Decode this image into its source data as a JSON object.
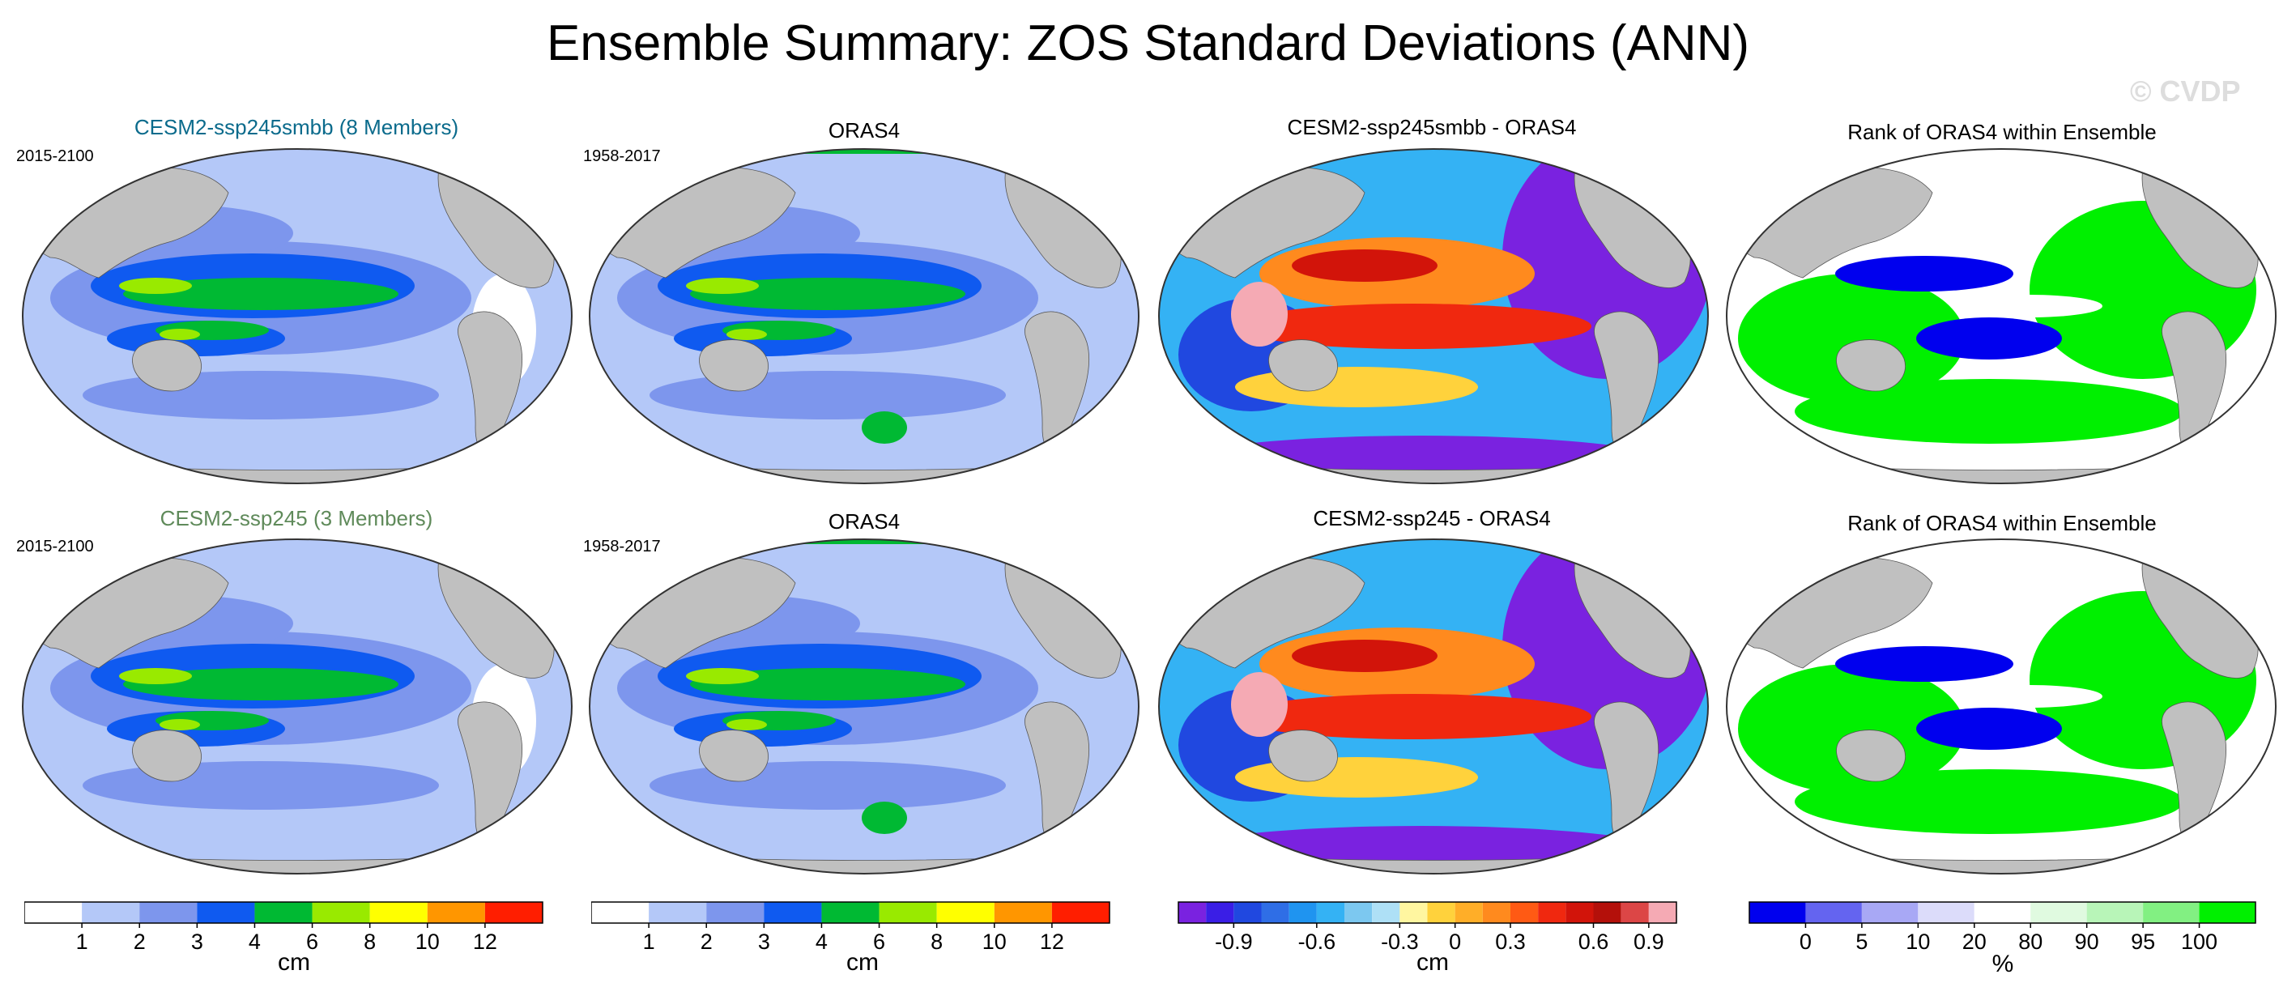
{
  "title": "Ensemble Summary: ZOS Standard Deviations (ANN)",
  "watermark": "© CVDP",
  "colors": {
    "ocean_light": "#b4c8f8",
    "ocean_mid": "#7d96ed",
    "ocean_blue": "#0f5af0",
    "ocean_green": "#00b933",
    "ocean_lime": "#99ea00",
    "land": "#c0c0c0",
    "text_model1": "#0b6b8c",
    "text_model2": "#5f8a5a"
  },
  "rows": [
    {
      "panels": [
        {
          "title": "CESM2-ssp245smbb (8 Members)",
          "period": "2015-2100",
          "kind": "std"
        },
        {
          "title": "ORAS4",
          "period": "1958-2017",
          "kind": "std"
        },
        {
          "title": "CESM2-ssp245smbb - ORAS4",
          "kind": "diff"
        },
        {
          "title": "Rank of ORAS4 within Ensemble",
          "kind": "rank"
        }
      ]
    },
    {
      "panels": [
        {
          "title": "CESM2-ssp245 (3 Members)",
          "period": "2015-2100",
          "kind": "std"
        },
        {
          "title": "ORAS4",
          "period": "1958-2017",
          "kind": "std"
        },
        {
          "title": "CESM2-ssp245 - ORAS4",
          "kind": "diff"
        },
        {
          "title": "Rank of ORAS4 within Ensemble",
          "kind": "rank"
        }
      ]
    }
  ],
  "chart_data": [
    {
      "type": "colorbar",
      "label": "cm",
      "levels": [
        "1",
        "2",
        "3",
        "4",
        "6",
        "8",
        "10",
        "12"
      ],
      "colors": [
        "#ffffff",
        "#b4c8f8",
        "#7d96ed",
        "#0f5af0",
        "#00b933",
        "#99ea00",
        "#ffff00",
        "#ff9600",
        "#ff1e00"
      ]
    },
    {
      "type": "colorbar",
      "label": "cm",
      "levels": [
        "1",
        "2",
        "3",
        "4",
        "6",
        "8",
        "10",
        "12"
      ],
      "colors": [
        "#ffffff",
        "#b4c8f8",
        "#7d96ed",
        "#0f5af0",
        "#00b933",
        "#99ea00",
        "#ffff00",
        "#ff9600",
        "#ff1e00"
      ]
    },
    {
      "type": "colorbar",
      "label": "cm",
      "levels": [
        "-0.9",
        "-0.6",
        "-0.3",
        "0",
        "0.3",
        "0.6",
        "0.9"
      ],
      "colors": [
        "#7a22e0",
        "#3a1ee6",
        "#2048e0",
        "#2f6ee6",
        "#1f94f0",
        "#34b2f4",
        "#7cc8f0",
        "#aee0f6",
        "#fff6a0",
        "#ffd23c",
        "#ffae28",
        "#ff8a1e",
        "#ff5a14",
        "#f0280f",
        "#d2140a",
        "#b4100a",
        "#dc4646",
        "#f5aab4"
      ]
    },
    {
      "type": "colorbar",
      "label": "%",
      "levels": [
        "0",
        "5",
        "10",
        "20",
        "80",
        "90",
        "95",
        "100"
      ],
      "colors": [
        "#0000ee",
        "#6464f0",
        "#a8a8f5",
        "#dcdcfa",
        "#ffffff",
        "#e0fae0",
        "#b8f5b8",
        "#82f082",
        "#00f000"
      ]
    }
  ]
}
